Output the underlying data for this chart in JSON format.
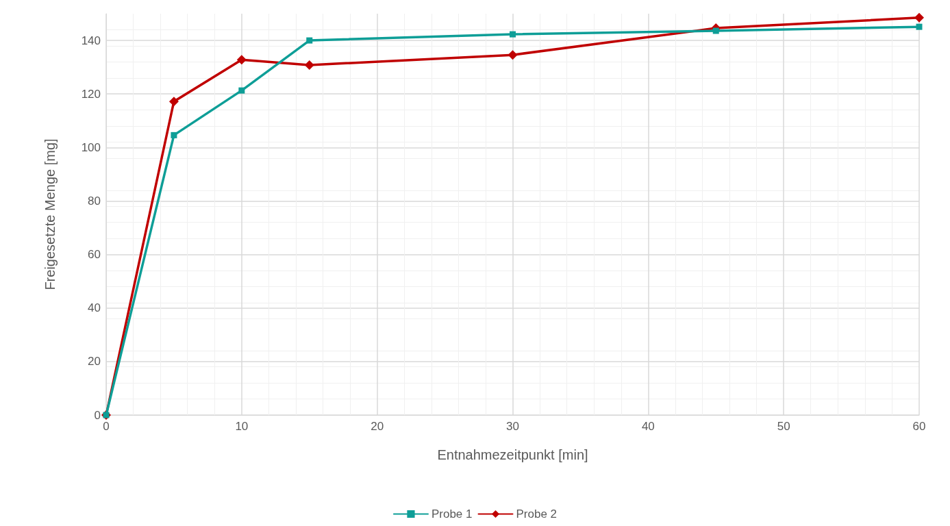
{
  "chart_data": {
    "type": "line",
    "xlabel": "Entnahmezeitpunkt [min]",
    "ylabel": "Freigesetzte Menge [mg]",
    "xlim": [
      0,
      60
    ],
    "xticks": [
      0,
      10,
      20,
      30,
      40,
      50,
      60
    ],
    "ylim": [
      0,
      150
    ],
    "yticks": [
      0,
      20,
      40,
      60,
      80,
      100,
      120,
      140
    ],
    "grid": true,
    "legend": "bottom",
    "line_style": "solid",
    "series": [
      {
        "name": "Probe 1",
        "color": "#0e9e97",
        "marker": "square",
        "x": [
          0,
          5,
          10,
          15,
          30,
          45,
          60
        ],
        "values": [
          0,
          104.6,
          121.3,
          140,
          142.3,
          143.6,
          145.1
        ]
      },
      {
        "name": "Probe 2",
        "color": "#c00000",
        "marker": "diamond",
        "x": [
          0,
          5,
          10,
          15,
          30,
          45,
          60
        ],
        "values": [
          0,
          117.2,
          132.8,
          130.8,
          134.6,
          144.6,
          148.5
        ]
      }
    ]
  }
}
